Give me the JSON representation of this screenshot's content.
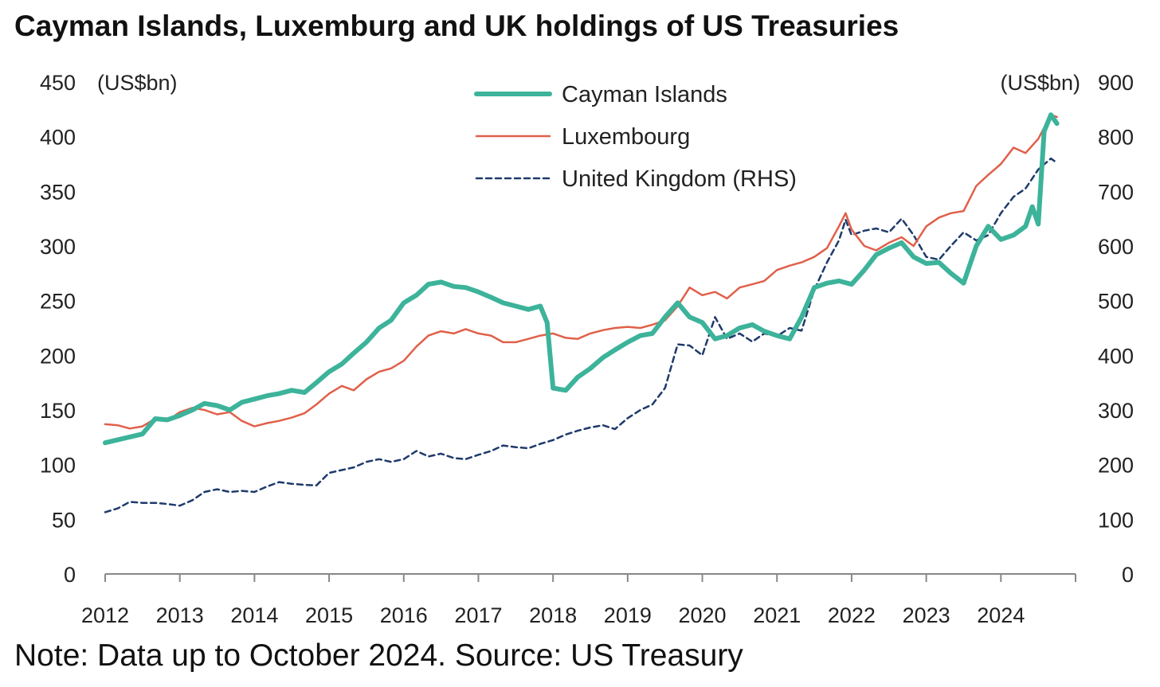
{
  "title": "Cayman Islands, Luxemburg and UK holdings of US Treasuries",
  "note": "Note: Data up to October 2024. Source: US Treasury",
  "chart_data": {
    "type": "line",
    "left_axis": {
      "unit_label": "(US$bn)",
      "ylim": [
        0,
        450
      ],
      "ticks": [
        0,
        50,
        100,
        150,
        200,
        250,
        300,
        350,
        400,
        450
      ]
    },
    "right_axis": {
      "unit_label": "(US$bn)",
      "ylim": [
        0,
        900
      ],
      "ticks": [
        0,
        100,
        200,
        300,
        400,
        500,
        600,
        700,
        800,
        900
      ]
    },
    "x_axis": {
      "range": [
        2012,
        2025
      ],
      "tick_labels": [
        "2012",
        "2013",
        "2014",
        "2015",
        "2016",
        "2017",
        "2018",
        "2019",
        "2020",
        "2021",
        "2022",
        "2023",
        "2024"
      ]
    },
    "legend_position": "top-center",
    "grid": false,
    "series": [
      {
        "name": "Cayman Islands",
        "axis": "left",
        "color": "#3cb39a",
        "style": "solid-thick",
        "points": [
          [
            2012.0,
            120
          ],
          [
            2012.25,
            124
          ],
          [
            2012.5,
            128
          ],
          [
            2012.67,
            142
          ],
          [
            2012.83,
            141
          ],
          [
            2013.0,
            145
          ],
          [
            2013.17,
            150
          ],
          [
            2013.33,
            156
          ],
          [
            2013.5,
            154
          ],
          [
            2013.67,
            150
          ],
          [
            2013.83,
            157
          ],
          [
            2014.0,
            160
          ],
          [
            2014.17,
            163
          ],
          [
            2014.33,
            165
          ],
          [
            2014.5,
            168
          ],
          [
            2014.67,
            166
          ],
          [
            2014.83,
            175
          ],
          [
            2015.0,
            185
          ],
          [
            2015.17,
            192
          ],
          [
            2015.33,
            202
          ],
          [
            2015.5,
            212
          ],
          [
            2015.67,
            225
          ],
          [
            2015.83,
            232
          ],
          [
            2016.0,
            248
          ],
          [
            2016.17,
            255
          ],
          [
            2016.33,
            265
          ],
          [
            2016.5,
            267
          ],
          [
            2016.67,
            263
          ],
          [
            2016.83,
            262
          ],
          [
            2017.0,
            258
          ],
          [
            2017.17,
            253
          ],
          [
            2017.33,
            248
          ],
          [
            2017.5,
            245
          ],
          [
            2017.67,
            242
          ],
          [
            2017.83,
            245
          ],
          [
            2017.92,
            230
          ],
          [
            2018.0,
            170
          ],
          [
            2018.17,
            168
          ],
          [
            2018.33,
            180
          ],
          [
            2018.5,
            188
          ],
          [
            2018.67,
            198
          ],
          [
            2018.83,
            205
          ],
          [
            2019.0,
            212
          ],
          [
            2019.17,
            218
          ],
          [
            2019.33,
            220
          ],
          [
            2019.5,
            235
          ],
          [
            2019.67,
            248
          ],
          [
            2019.83,
            235
          ],
          [
            2020.0,
            230
          ],
          [
            2020.17,
            215
          ],
          [
            2020.33,
            218
          ],
          [
            2020.5,
            225
          ],
          [
            2020.67,
            228
          ],
          [
            2020.83,
            222
          ],
          [
            2021.0,
            218
          ],
          [
            2021.17,
            215
          ],
          [
            2021.33,
            235
          ],
          [
            2021.5,
            262
          ],
          [
            2021.67,
            266
          ],
          [
            2021.83,
            268
          ],
          [
            2022.0,
            265
          ],
          [
            2022.17,
            278
          ],
          [
            2022.33,
            292
          ],
          [
            2022.5,
            298
          ],
          [
            2022.67,
            303
          ],
          [
            2022.83,
            290
          ],
          [
            2023.0,
            284
          ],
          [
            2023.17,
            285
          ],
          [
            2023.33,
            275
          ],
          [
            2023.5,
            266
          ],
          [
            2023.67,
            300
          ],
          [
            2023.83,
            318
          ],
          [
            2024.0,
            306
          ],
          [
            2024.17,
            310
          ],
          [
            2024.33,
            318
          ],
          [
            2024.42,
            336
          ],
          [
            2024.5,
            320
          ],
          [
            2024.58,
            405
          ],
          [
            2024.67,
            420
          ],
          [
            2024.75,
            412
          ]
        ]
      },
      {
        "name": "Luxembourg",
        "axis": "left",
        "color": "#e0604a",
        "style": "solid-thin",
        "points": [
          [
            2012.0,
            137
          ],
          [
            2012.17,
            136
          ],
          [
            2012.33,
            133
          ],
          [
            2012.5,
            135
          ],
          [
            2012.67,
            142
          ],
          [
            2012.83,
            140
          ],
          [
            2013.0,
            148
          ],
          [
            2013.17,
            152
          ],
          [
            2013.33,
            150
          ],
          [
            2013.5,
            146
          ],
          [
            2013.67,
            148
          ],
          [
            2013.83,
            140
          ],
          [
            2014.0,
            135
          ],
          [
            2014.17,
            138
          ],
          [
            2014.33,
            140
          ],
          [
            2014.5,
            143
          ],
          [
            2014.67,
            147
          ],
          [
            2014.83,
            155
          ],
          [
            2015.0,
            165
          ],
          [
            2015.17,
            172
          ],
          [
            2015.33,
            168
          ],
          [
            2015.5,
            178
          ],
          [
            2015.67,
            185
          ],
          [
            2015.83,
            188
          ],
          [
            2016.0,
            195
          ],
          [
            2016.17,
            208
          ],
          [
            2016.33,
            218
          ],
          [
            2016.5,
            222
          ],
          [
            2016.67,
            220
          ],
          [
            2016.83,
            224
          ],
          [
            2017.0,
            220
          ],
          [
            2017.17,
            218
          ],
          [
            2017.33,
            212
          ],
          [
            2017.5,
            212
          ],
          [
            2017.67,
            215
          ],
          [
            2017.83,
            218
          ],
          [
            2018.0,
            220
          ],
          [
            2018.17,
            216
          ],
          [
            2018.33,
            215
          ],
          [
            2018.5,
            220
          ],
          [
            2018.67,
            223
          ],
          [
            2018.83,
            225
          ],
          [
            2019.0,
            226
          ],
          [
            2019.17,
            225
          ],
          [
            2019.33,
            228
          ],
          [
            2019.5,
            232
          ],
          [
            2019.67,
            245
          ],
          [
            2019.83,
            262
          ],
          [
            2020.0,
            255
          ],
          [
            2020.17,
            258
          ],
          [
            2020.33,
            252
          ],
          [
            2020.5,
            262
          ],
          [
            2020.67,
            265
          ],
          [
            2020.83,
            268
          ],
          [
            2021.0,
            278
          ],
          [
            2021.17,
            282
          ],
          [
            2021.33,
            285
          ],
          [
            2021.5,
            290
          ],
          [
            2021.67,
            298
          ],
          [
            2021.83,
            318
          ],
          [
            2021.92,
            330
          ],
          [
            2022.0,
            315
          ],
          [
            2022.17,
            300
          ],
          [
            2022.33,
            296
          ],
          [
            2022.5,
            303
          ],
          [
            2022.67,
            308
          ],
          [
            2022.83,
            300
          ],
          [
            2023.0,
            318
          ],
          [
            2023.17,
            326
          ],
          [
            2023.33,
            330
          ],
          [
            2023.5,
            332
          ],
          [
            2023.67,
            355
          ],
          [
            2023.83,
            365
          ],
          [
            2024.0,
            375
          ],
          [
            2024.17,
            390
          ],
          [
            2024.33,
            385
          ],
          [
            2024.5,
            398
          ],
          [
            2024.67,
            420
          ],
          [
            2024.75,
            418
          ]
        ]
      },
      {
        "name": "United Kingdom (RHS)",
        "axis": "right",
        "color": "#1f3a6b",
        "style": "dashed",
        "points": [
          [
            2012.0,
            113
          ],
          [
            2012.17,
            120
          ],
          [
            2012.33,
            132
          ],
          [
            2012.5,
            130
          ],
          [
            2012.67,
            130
          ],
          [
            2012.83,
            128
          ],
          [
            2013.0,
            125
          ],
          [
            2013.17,
            135
          ],
          [
            2013.33,
            150
          ],
          [
            2013.5,
            155
          ],
          [
            2013.67,
            150
          ],
          [
            2013.83,
            152
          ],
          [
            2014.0,
            150
          ],
          [
            2014.17,
            160
          ],
          [
            2014.33,
            168
          ],
          [
            2014.5,
            165
          ],
          [
            2014.67,
            163
          ],
          [
            2014.83,
            162
          ],
          [
            2015.0,
            185
          ],
          [
            2015.17,
            190
          ],
          [
            2015.33,
            195
          ],
          [
            2015.5,
            205
          ],
          [
            2015.67,
            210
          ],
          [
            2015.83,
            205
          ],
          [
            2016.0,
            210
          ],
          [
            2016.17,
            225
          ],
          [
            2016.33,
            215
          ],
          [
            2016.5,
            220
          ],
          [
            2016.67,
            212
          ],
          [
            2016.83,
            210
          ],
          [
            2017.0,
            218
          ],
          [
            2017.17,
            225
          ],
          [
            2017.33,
            235
          ],
          [
            2017.5,
            232
          ],
          [
            2017.67,
            230
          ],
          [
            2017.83,
            238
          ],
          [
            2018.0,
            245
          ],
          [
            2018.17,
            255
          ],
          [
            2018.33,
            262
          ],
          [
            2018.5,
            268
          ],
          [
            2018.67,
            272
          ],
          [
            2018.83,
            265
          ],
          [
            2019.0,
            285
          ],
          [
            2019.17,
            300
          ],
          [
            2019.33,
            310
          ],
          [
            2019.5,
            340
          ],
          [
            2019.67,
            420
          ],
          [
            2019.83,
            418
          ],
          [
            2020.0,
            400
          ],
          [
            2020.17,
            470
          ],
          [
            2020.33,
            430
          ],
          [
            2020.5,
            440
          ],
          [
            2020.67,
            425
          ],
          [
            2020.83,
            440
          ],
          [
            2021.0,
            435
          ],
          [
            2021.17,
            450
          ],
          [
            2021.33,
            445
          ],
          [
            2021.5,
            520
          ],
          [
            2021.67,
            570
          ],
          [
            2021.83,
            610
          ],
          [
            2021.92,
            648
          ],
          [
            2022.0,
            620
          ],
          [
            2022.17,
            628
          ],
          [
            2022.33,
            632
          ],
          [
            2022.5,
            625
          ],
          [
            2022.67,
            650
          ],
          [
            2022.83,
            620
          ],
          [
            2023.0,
            580
          ],
          [
            2023.17,
            575
          ],
          [
            2023.33,
            600
          ],
          [
            2023.5,
            625
          ],
          [
            2023.67,
            610
          ],
          [
            2023.83,
            620
          ],
          [
            2024.0,
            660
          ],
          [
            2024.17,
            690
          ],
          [
            2024.33,
            705
          ],
          [
            2024.5,
            740
          ],
          [
            2024.67,
            760
          ],
          [
            2024.75,
            752
          ]
        ]
      }
    ]
  }
}
